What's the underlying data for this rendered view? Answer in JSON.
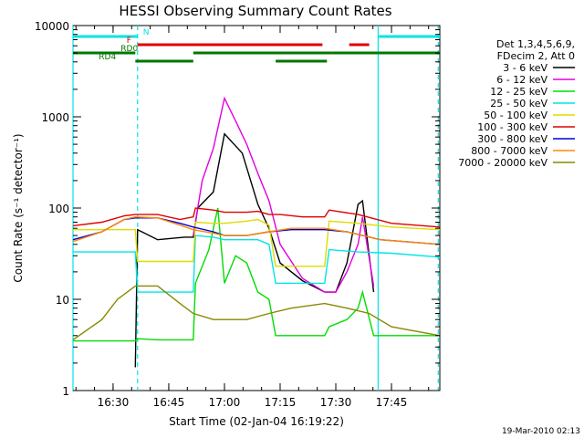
{
  "chart_data": {
    "type": "line",
    "title": "HESSI Observing Summary Count Rates",
    "xlabel": "Start Time (02-Jan-04 16:19:22)",
    "ylabel": "Count Rate (s⁻¹ detector⁻¹)",
    "footer": "19-Mar-2010 02:13",
    "yscale": "log",
    "xlim": [
      16.32,
      17.967
    ],
    "ylim": [
      1,
      10000
    ],
    "x_unit": "hours of day (UT)",
    "x_ticks": [
      {
        "v": 16.5,
        "label": "16:30"
      },
      {
        "v": 16.75,
        "label": "16:45"
      },
      {
        "v": 17.0,
        "label": "17:00"
      },
      {
        "v": 17.25,
        "label": "17:15"
      },
      {
        "v": 17.5,
        "label": "17:30"
      },
      {
        "v": 17.75,
        "label": "17:45"
      }
    ],
    "y_ticks": [
      {
        "v": 1,
        "label": "1"
      },
      {
        "v": 10,
        "label": "10"
      },
      {
        "v": 100,
        "label": "100"
      },
      {
        "v": 1000,
        "label": "1000"
      },
      {
        "v": 10000,
        "label": "10000"
      }
    ],
    "legend_header": [
      "Det 1,3,4,5,6,9,",
      "FDecim 2, Att 0"
    ],
    "legend_position": "right",
    "bars": [
      {
        "label": "N",
        "color": "#00e5e5",
        "row": 0,
        "segments": [
          [
            16.32,
            16.61
          ],
          [
            17.69,
            17.967
          ]
        ]
      },
      {
        "label": "F",
        "color": "#e00000",
        "row": 1,
        "segments": [
          [
            16.61,
            17.44
          ],
          [
            17.56,
            17.65
          ]
        ]
      },
      {
        "label": "RD0",
        "color": "#007700",
        "row": 2,
        "segments": [
          [
            16.32,
            16.6
          ]
        ]
      },
      {
        "label": "RD4",
        "color": "#007700",
        "row": 3,
        "segments": [
          [
            16.6,
            16.86
          ],
          [
            17.23,
            17.46
          ]
        ]
      },
      {
        "label": "",
        "color": "#007700",
        "row": 2,
        "segments": [
          [
            16.86,
            17.48
          ],
          [
            17.48,
            17.967
          ]
        ]
      }
    ],
    "vlines": [
      {
        "x": 16.32,
        "style": "solid",
        "color": "#00e5e5"
      },
      {
        "x": 16.61,
        "style": "dashed",
        "color": "#00e5e5"
      },
      {
        "x": 17.69,
        "style": "solid",
        "color": "#00e5e5"
      },
      {
        "x": 17.96,
        "style": "dashed",
        "color": "#00e5e5"
      }
    ],
    "series": [
      {
        "name": "3 - 6 keV",
        "color": "#000000",
        "points": [
          [
            16.6,
            1.8
          ],
          [
            16.61,
            58
          ],
          [
            16.7,
            45
          ],
          [
            16.82,
            48
          ],
          [
            16.86,
            48
          ],
          [
            16.88,
            100
          ],
          [
            16.95,
            150
          ],
          [
            17.0,
            650
          ],
          [
            17.08,
            400
          ],
          [
            17.15,
            110
          ],
          [
            17.2,
            60
          ],
          [
            17.25,
            25
          ],
          [
            17.35,
            16
          ],
          [
            17.45,
            12
          ],
          [
            17.5,
            12
          ],
          [
            17.55,
            25
          ],
          [
            17.6,
            110
          ],
          [
            17.62,
            120
          ],
          [
            17.67,
            12
          ]
        ]
      },
      {
        "name": "6 - 12 keV",
        "color": "#e000e0",
        "points": [
          [
            16.86,
            50
          ],
          [
            16.9,
            200
          ],
          [
            16.95,
            450
          ],
          [
            17.0,
            1600
          ],
          [
            17.05,
            900
          ],
          [
            17.1,
            500
          ],
          [
            17.15,
            240
          ],
          [
            17.2,
            120
          ],
          [
            17.25,
            40
          ],
          [
            17.35,
            17
          ],
          [
            17.45,
            12
          ],
          [
            17.5,
            12
          ],
          [
            17.55,
            20
          ],
          [
            17.6,
            40
          ],
          [
            17.62,
            80
          ],
          [
            17.67,
            14
          ]
        ]
      },
      {
        "name": "12 - 25 keV",
        "color": "#00dd00",
        "points": [
          [
            16.32,
            3.5
          ],
          [
            16.5,
            3.5
          ],
          [
            16.6,
            3.5
          ],
          [
            16.61,
            3.7
          ],
          [
            16.7,
            3.6
          ],
          [
            16.86,
            3.6
          ],
          [
            16.87,
            15
          ],
          [
            16.93,
            35
          ],
          [
            16.97,
            100
          ],
          [
            17.0,
            15
          ],
          [
            17.05,
            30
          ],
          [
            17.1,
            25
          ],
          [
            17.15,
            12
          ],
          [
            17.2,
            10
          ],
          [
            17.23,
            4
          ],
          [
            17.3,
            4
          ],
          [
            17.45,
            4
          ],
          [
            17.47,
            5
          ],
          [
            17.55,
            6
          ],
          [
            17.6,
            8
          ],
          [
            17.62,
            12
          ],
          [
            17.67,
            4
          ],
          [
            17.967,
            4
          ]
        ]
      },
      {
        "name": "25 - 50 keV",
        "color": "#00e5e5",
        "points": [
          [
            16.32,
            33
          ],
          [
            16.5,
            33
          ],
          [
            16.6,
            33
          ],
          [
            16.61,
            12
          ],
          [
            16.75,
            12
          ],
          [
            16.86,
            12
          ],
          [
            16.87,
            50
          ],
          [
            16.95,
            48
          ],
          [
            17.0,
            45
          ],
          [
            17.1,
            45
          ],
          [
            17.15,
            45
          ],
          [
            17.2,
            40
          ],
          [
            17.23,
            15
          ],
          [
            17.35,
            15
          ],
          [
            17.45,
            15
          ],
          [
            17.47,
            35
          ],
          [
            17.6,
            33
          ],
          [
            17.75,
            32
          ],
          [
            17.967,
            29
          ]
        ]
      },
      {
        "name": "50 - 100 keV",
        "color": "#dddd00",
        "points": [
          [
            16.32,
            58
          ],
          [
            16.5,
            58
          ],
          [
            16.6,
            58
          ],
          [
            16.61,
            26
          ],
          [
            16.75,
            26
          ],
          [
            16.86,
            26
          ],
          [
            16.87,
            70
          ],
          [
            16.95,
            68
          ],
          [
            17.0,
            68
          ],
          [
            17.1,
            72
          ],
          [
            17.15,
            75
          ],
          [
            17.2,
            65
          ],
          [
            17.23,
            23
          ],
          [
            17.35,
            23
          ],
          [
            17.45,
            23
          ],
          [
            17.47,
            72
          ],
          [
            17.6,
            68
          ],
          [
            17.75,
            62
          ],
          [
            17.967,
            58
          ]
        ]
      },
      {
        "name": "100 - 300 keV",
        "color": "#e00000",
        "points": [
          [
            16.32,
            64
          ],
          [
            16.45,
            70
          ],
          [
            16.55,
            82
          ],
          [
            16.6,
            85
          ],
          [
            16.7,
            85
          ],
          [
            16.8,
            75
          ],
          [
            16.86,
            80
          ],
          [
            16.87,
            100
          ],
          [
            16.95,
            95
          ],
          [
            17.0,
            90
          ],
          [
            17.1,
            90
          ],
          [
            17.15,
            92
          ],
          [
            17.2,
            85
          ],
          [
            17.25,
            85
          ],
          [
            17.35,
            80
          ],
          [
            17.45,
            80
          ],
          [
            17.47,
            95
          ],
          [
            17.6,
            85
          ],
          [
            17.75,
            68
          ],
          [
            17.967,
            62
          ]
        ]
      },
      {
        "name": "300 - 800 keV",
        "color": "#0000dd",
        "points": [
          [
            16.32,
            45
          ],
          [
            16.45,
            55
          ],
          [
            16.55,
            75
          ],
          [
            16.6,
            78
          ],
          [
            16.7,
            78
          ],
          [
            16.8,
            68
          ],
          [
            16.86,
            62
          ],
          [
            16.95,
            55
          ],
          [
            17.0,
            50
          ],
          [
            17.1,
            50
          ],
          [
            17.2,
            55
          ],
          [
            17.3,
            58
          ],
          [
            17.45,
            58
          ],
          [
            17.55,
            55
          ],
          [
            17.7,
            45
          ],
          [
            17.967,
            40
          ]
        ]
      },
      {
        "name": "800 - 7000 keV",
        "color": "#ff8800",
        "points": [
          [
            16.32,
            43
          ],
          [
            16.45,
            55
          ],
          [
            16.55,
            75
          ],
          [
            16.6,
            80
          ],
          [
            16.7,
            78
          ],
          [
            16.8,
            65
          ],
          [
            16.86,
            58
          ],
          [
            16.95,
            53
          ],
          [
            17.0,
            50
          ],
          [
            17.1,
            50
          ],
          [
            17.2,
            55
          ],
          [
            17.3,
            60
          ],
          [
            17.45,
            60
          ],
          [
            17.55,
            55
          ],
          [
            17.7,
            45
          ],
          [
            17.967,
            40
          ]
        ]
      },
      {
        "name": "7000 - 20000 keV",
        "color": "#888800",
        "points": [
          [
            16.32,
            3.6
          ],
          [
            16.45,
            6
          ],
          [
            16.52,
            10
          ],
          [
            16.6,
            14
          ],
          [
            16.7,
            14
          ],
          [
            16.8,
            9
          ],
          [
            16.86,
            7
          ],
          [
            16.95,
            6
          ],
          [
            17.0,
            6
          ],
          [
            17.1,
            6
          ],
          [
            17.2,
            7
          ],
          [
            17.3,
            8
          ],
          [
            17.45,
            9
          ],
          [
            17.55,
            8
          ],
          [
            17.65,
            7
          ],
          [
            17.75,
            5
          ],
          [
            17.967,
            4
          ]
        ]
      }
    ]
  }
}
